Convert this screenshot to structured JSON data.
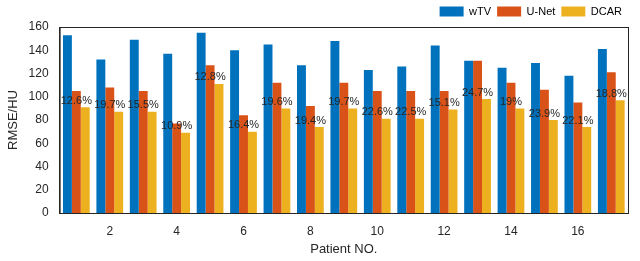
{
  "chart_data": {
    "type": "bar",
    "categories": [
      null,
      2,
      null,
      4,
      null,
      6,
      null,
      8,
      null,
      10,
      null,
      12,
      null,
      14,
      null,
      16,
      null
    ],
    "x_label": "Patient NO.",
    "y_label": "RMSE/HU",
    "series": [
      {
        "name": "wTV",
        "color": "#0072BD",
        "values": [
          153,
          132,
          149,
          137,
          155,
          140,
          145,
          127,
          148,
          123,
          126,
          144,
          131,
          125,
          129,
          118,
          141
        ]
      },
      {
        "name": "U-Net",
        "color": "#D95319",
        "values": [
          105,
          108,
          105,
          77,
          127,
          84,
          112,
          92,
          112,
          105,
          105,
          105,
          131,
          112,
          106,
          95,
          121
        ]
      },
      {
        "name": "DCAR",
        "color": "#EDB120",
        "values": [
          91,
          87,
          87,
          69,
          111,
          70,
          90,
          74,
          90,
          81,
          81,
          89,
          98,
          90,
          80,
          74,
          97
        ]
      }
    ],
    "annotations": [
      "12.6%",
      "19.7%",
      "15.5%",
      "10.9%",
      "12.8%",
      "16.4%",
      "19.6%",
      "19.4%",
      "19.7%",
      "22.6%",
      "22.5%",
      "15.1%",
      "24.7%",
      "19%",
      "23.9%",
      "22.1%",
      "18.8%"
    ],
    "ylim": [
      0,
      160
    ],
    "yticks": [
      0,
      20,
      40,
      60,
      80,
      100,
      120,
      140,
      160
    ],
    "grid": false,
    "legend": "upper right"
  }
}
